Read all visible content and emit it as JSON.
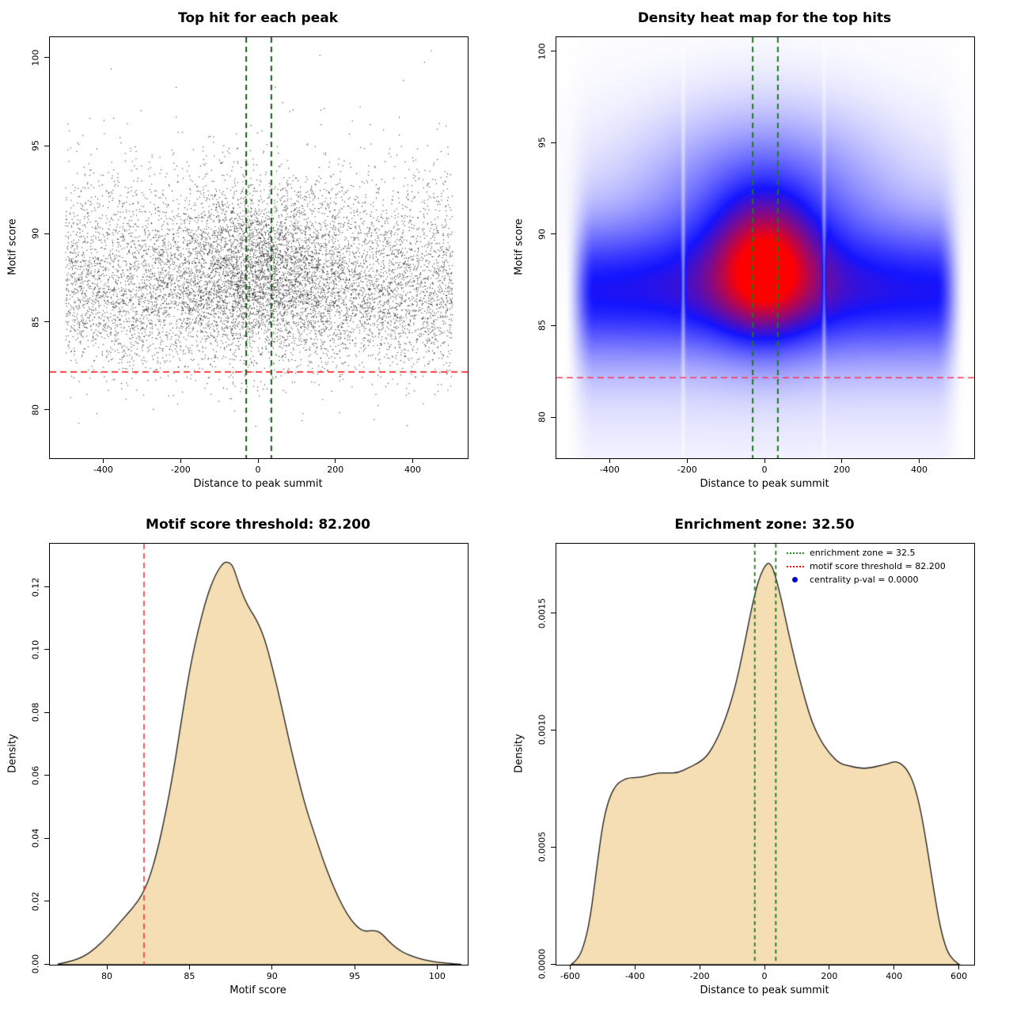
{
  "figure": {
    "background": "#ffffff"
  },
  "parameters": {
    "motif_score_threshold": "82.200",
    "enrichment_zone": "32.50",
    "centrality_p_value": "0.0000"
  },
  "chart_data": [
    {
      "id": "top-hit-scatter",
      "type": "scatter",
      "title": "Top hit for each peak",
      "xlabel": "Distance to peak summit",
      "ylabel": "Motif score",
      "xlim": [
        -540,
        540
      ],
      "ylim": [
        77.3,
        101.2
      ],
      "xticks": [
        {
          "v": -400,
          "label": "-400"
        },
        {
          "v": -200,
          "label": "-200"
        },
        {
          "v": 0,
          "label": "0"
        },
        {
          "v": 200,
          "label": "200"
        },
        {
          "v": 400,
          "label": "400"
        }
      ],
      "yticks": [
        {
          "v": 80,
          "label": "80"
        },
        {
          "v": 85,
          "label": "85"
        },
        {
          "v": 90,
          "label": "90"
        },
        {
          "v": 95,
          "label": "95"
        },
        {
          "v": 100,
          "label": "100"
        }
      ],
      "lines": [
        {
          "orient": "h",
          "at": 82.2,
          "color": "#ff0000",
          "width": 1.6,
          "dash": [
            8,
            5
          ]
        },
        {
          "orient": "v",
          "at": -32.5,
          "color": "#155a15",
          "width": 2,
          "dash": [
            7,
            5
          ]
        },
        {
          "orient": "v",
          "at": 32.5,
          "color": "#155a15",
          "width": 2,
          "dash": [
            7,
            5
          ]
        }
      ],
      "points": {
        "n": 10000,
        "seed": 42,
        "color": "#000000",
        "x_range": [
          -500,
          500
        ],
        "center_fraction": 0.22,
        "center_sigma": 115,
        "y_mode": 87,
        "y_sd_low": 2.3,
        "y_sd_high": 2.9,
        "y_center_mode": 88.2,
        "y_center_sd": 2.2,
        "y_min": 78.2,
        "y_max": 100.6,
        "tail_prob": 0.05,
        "tail_scale": 6
      }
    },
    {
      "id": "top-hit-density-heatmap",
      "type": "heatmap",
      "title": "Density heat map for the top hits",
      "xlabel": "Distance to peak summit",
      "ylabel": "Motif score",
      "xlim": [
        -540,
        540
      ],
      "ylim": [
        77.8,
        100.8
      ],
      "xticks": [
        {
          "v": -400,
          "label": "-400"
        },
        {
          "v": -200,
          "label": "-200"
        },
        {
          "v": 0,
          "label": "0"
        },
        {
          "v": 200,
          "label": "200"
        },
        {
          "v": 400,
          "label": "400"
        }
      ],
      "yticks": [
        {
          "v": 80,
          "label": "80"
        },
        {
          "v": 85,
          "label": "85"
        },
        {
          "v": 90,
          "label": "90"
        },
        {
          "v": 95,
          "label": "95"
        },
        {
          "v": 100,
          "label": "100"
        }
      ],
      "lines": [
        {
          "orient": "h",
          "at": 82.2,
          "color": "#ff3355",
          "width": 1.6,
          "dash": [
            8,
            5
          ]
        },
        {
          "orient": "v",
          "at": -32.5,
          "color": "#1d7a1d",
          "width": 2,
          "dash": [
            7,
            5
          ]
        },
        {
          "orient": "v",
          "at": 32.5,
          "color": "#1d7a1d",
          "width": 2,
          "dash": [
            7,
            5
          ]
        }
      ],
      "model": {
        "band": {
          "y": 86.9,
          "sy": 2.4,
          "amp": 0.42
        },
        "halo": {
          "y": 86.5,
          "sy": 5.0,
          "amp": 0.1
        },
        "core": {
          "x": 0,
          "y": 88.3,
          "sx": 90,
          "sy": 2.6,
          "amp": 0.55
        },
        "upper": {
          "x": 0,
          "y": 92.0,
          "sx": 200,
          "sy": 3.2,
          "amp": 0.3
        },
        "plateau": {
          "inner": 440,
          "outer": 518
        },
        "artifacts": [
          {
            "x": -212,
            "depth": 0.55,
            "sigma": 5
          },
          {
            "x": 152,
            "depth": 0.5,
            "sigma": 5
          }
        ],
        "gamma": 0.9,
        "colormap": [
          {
            "t": 0,
            "color": "#ffffff"
          },
          {
            "t": 0.55,
            "color": "#1414ff"
          },
          {
            "t": 1,
            "color": "#ff0000"
          }
        ]
      }
    },
    {
      "id": "motif-score-density",
      "type": "area",
      "title": "Motif score threshold: 82.200",
      "xlabel": "Motif score",
      "ylabel": "Density",
      "xlim": [
        76.5,
        101.8
      ],
      "ylim": [
        0,
        0.134
      ],
      "xticks": [
        {
          "v": 80,
          "label": "80"
        },
        {
          "v": 85,
          "label": "85"
        },
        {
          "v": 90,
          "label": "90"
        },
        {
          "v": 95,
          "label": "95"
        },
        {
          "v": 100,
          "label": "100"
        }
      ],
      "yticks": [
        {
          "v": 0,
          "label": "0.00"
        },
        {
          "v": 0.02,
          "label": "0.02"
        },
        {
          "v": 0.04,
          "label": "0.04"
        },
        {
          "v": 0.06,
          "label": "0.06"
        },
        {
          "v": 0.08,
          "label": "0.08"
        },
        {
          "v": 0.1,
          "label": "0.10"
        },
        {
          "v": 0.12,
          "label": "0.12"
        }
      ],
      "fill": "#f5deb3",
      "stroke": "#1a1a1a",
      "lines": [
        {
          "orient": "v",
          "at": 82.2,
          "color": "#ee3333",
          "width": 1.6,
          "dash": [
            7,
            5
          ]
        }
      ],
      "curve": {
        "x": [
          77,
          78,
          79,
          80,
          80.5,
          81,
          81.5,
          82,
          82.5,
          83,
          83.5,
          84,
          84.5,
          85,
          85.5,
          86,
          86.5,
          87,
          87.3,
          87.6,
          88,
          88.5,
          89,
          89.5,
          90,
          90.5,
          91,
          91.5,
          92,
          92.5,
          93,
          93.5,
          94,
          94.5,
          95,
          95.5,
          96,
          96.5,
          97,
          97.5,
          98,
          98.5,
          99,
          99.5,
          100,
          100.5,
          101,
          101.4
        ],
        "y": [
          0.0002,
          0.0012,
          0.004,
          0.009,
          0.012,
          0.015,
          0.018,
          0.0215,
          0.027,
          0.036,
          0.048,
          0.062,
          0.079,
          0.095,
          0.107,
          0.117,
          0.124,
          0.128,
          0.1282,
          0.127,
          0.12,
          0.114,
          0.11,
          0.104,
          0.094,
          0.083,
          0.071,
          0.06,
          0.05,
          0.042,
          0.034,
          0.027,
          0.021,
          0.016,
          0.0125,
          0.0105,
          0.011,
          0.0105,
          0.0075,
          0.0052,
          0.0036,
          0.0026,
          0.0018,
          0.0012,
          0.0008,
          0.0005,
          0.0003,
          0.0001
        ]
      }
    },
    {
      "id": "summit-distance-density",
      "type": "area",
      "title": "Enrichment zone: 32.50",
      "xlabel": "Distance to peak summit",
      "ylabel": "Density",
      "xlim": [
        -645,
        645
      ],
      "ylim": [
        0,
        0.0018
      ],
      "xticks": [
        {
          "v": -600,
          "label": "-600"
        },
        {
          "v": -400,
          "label": "-400"
        },
        {
          "v": -200,
          "label": "-200"
        },
        {
          "v": 0,
          "label": "0"
        },
        {
          "v": 200,
          "label": "200"
        },
        {
          "v": 400,
          "label": "400"
        },
        {
          "v": 600,
          "label": "600"
        }
      ],
      "yticks": [
        {
          "v": 0,
          "label": "0.0000"
        },
        {
          "v": 0.0005,
          "label": "0.0005"
        },
        {
          "v": 0.001,
          "label": "0.0010"
        },
        {
          "v": 0.0015,
          "label": "0.0015"
        }
      ],
      "fill": "#f5deb3",
      "stroke": "#1a1a1a",
      "lines": [
        {
          "orient": "v",
          "at": -32.5,
          "color": "#1d7a1d",
          "width": 1.8,
          "dash": [
            5,
            4
          ]
        },
        {
          "orient": "v",
          "at": 32.5,
          "color": "#1d7a1d",
          "width": 1.8,
          "dash": [
            5,
            4
          ]
        }
      ],
      "curve": {
        "x": [
          -600,
          -580,
          -560,
          -540,
          -520,
          -500,
          -480,
          -460,
          -440,
          -420,
          -390,
          -360,
          -330,
          -300,
          -270,
          -240,
          -210,
          -180,
          -150,
          -120,
          -90,
          -60,
          -40,
          -20,
          0,
          15,
          30,
          50,
          70,
          90,
          110,
          140,
          170,
          200,
          230,
          260,
          290,
          320,
          350,
          380,
          400,
          420,
          440,
          460,
          480,
          500,
          520,
          540,
          560,
          580,
          600
        ],
        "y": [
          0.0,
          2e-05,
          8e-05,
          0.0002,
          0.00042,
          0.00062,
          0.00072,
          0.00077,
          0.00079,
          0.0008,
          0.0008,
          0.00081,
          0.00082,
          0.00082,
          0.00082,
          0.00084,
          0.00086,
          0.00089,
          0.00096,
          0.00106,
          0.0012,
          0.0014,
          0.00154,
          0.00165,
          0.00171,
          0.00172,
          0.00167,
          0.00156,
          0.00143,
          0.00131,
          0.0012,
          0.00105,
          0.00096,
          0.0009,
          0.00086,
          0.00085,
          0.00084,
          0.00084,
          0.00085,
          0.00086,
          0.00087,
          0.00086,
          0.00083,
          0.00077,
          0.00066,
          0.0005,
          0.00032,
          0.00016,
          6e-05,
          2e-05,
          0.0
        ]
      },
      "legend": [
        {
          "label": "enrichment zone = 32.5",
          "swatch": "dotted-line",
          "color": "#228B22"
        },
        {
          "label": "motif score threshold = 82.200",
          "swatch": "dotted-line",
          "color": "#ff0000"
        },
        {
          "label": "centrality p-val = 0.0000",
          "swatch": "point",
          "color": "#0000cd"
        }
      ]
    }
  ]
}
